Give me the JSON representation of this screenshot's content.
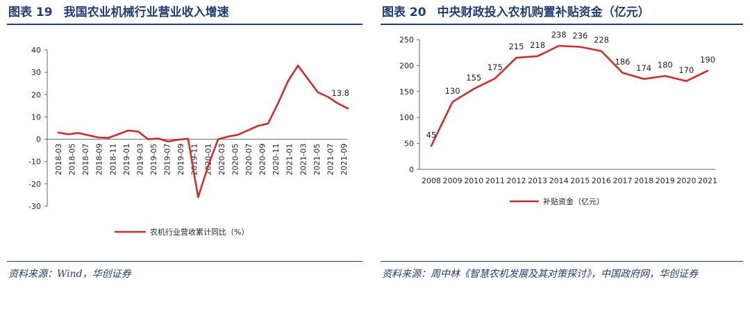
{
  "left": {
    "fig_no": "图表 19",
    "title": "我国农业机械行业营业收入增速",
    "source": "资料来源：Wind，华创证券",
    "chart_data": {
      "type": "line",
      "y_ticks": [
        40,
        30,
        20,
        10,
        0,
        -10,
        -20,
        -30
      ],
      "ylim": [
        -30,
        40
      ],
      "x_tick_labels": [
        "2018-03",
        "2018-05",
        "2018-07",
        "2018-09",
        "2018-11",
        "2019-01",
        "2019-03",
        "2019-05",
        "2019-07",
        "2019-09",
        "2019-11",
        "2020-01",
        "2020-03",
        "2020-05",
        "2020-07",
        "2020-09",
        "2020-11",
        "2021-01",
        "2021-03",
        "2021-05",
        "2021-07",
        "2021-09"
      ],
      "series": [
        {
          "name": "农机行业营收累计同比（%）",
          "color": "#d42a2a",
          "values": [
            3.0,
            2.2,
            2.8,
            1.8,
            0.8,
            0.6,
            2.2,
            3.9,
            3.4,
            0.0,
            0.3,
            -1.0,
            -0.2,
            0.2,
            -26.0,
            -12.0,
            0.0,
            1.2,
            2.0,
            4.0,
            6.0,
            7.0,
            16.0,
            26.0,
            33.0,
            27.0,
            21.0,
            19.0,
            16.0,
            13.8
          ],
          "end_label": "13.8"
        }
      ]
    }
  },
  "right": {
    "fig_no": "图表 20",
    "title": "中央财政投入农机购置补贴资金（亿元）",
    "source": "资料来源：周中林《智慧农机发展及其对策探讨》，中国政府网，华创证券",
    "chart_data": {
      "type": "line",
      "categories": [
        "2008",
        "2009",
        "2010",
        "2011",
        "2012",
        "2013",
        "2014",
        "2015",
        "2016",
        "2017",
        "2018",
        "2019",
        "2020",
        "2021"
      ],
      "values": [
        45,
        130,
        155,
        175,
        215,
        218,
        238,
        236,
        228,
        186,
        174,
        180,
        170,
        190
      ],
      "y_ticks": [
        250,
        200,
        150,
        100,
        50,
        0
      ],
      "ylim": [
        0,
        250
      ],
      "series_name": "补贴资金（亿元）",
      "color": "#d42a2a"
    }
  }
}
